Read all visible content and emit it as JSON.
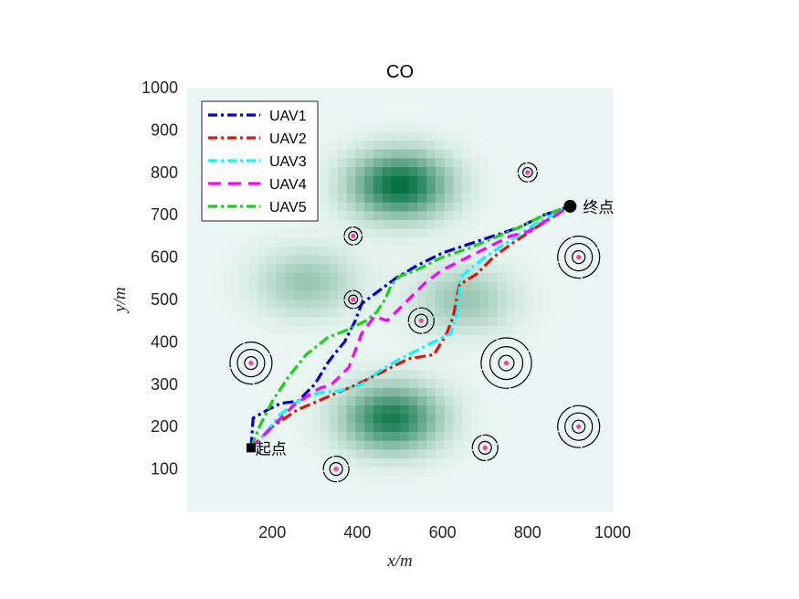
{
  "chart_data": {
    "type": "line",
    "title": "CO",
    "xlabel": "x/m",
    "ylabel": "y/m",
    "xlim": [
      0,
      1000
    ],
    "ylim": [
      0,
      1000
    ],
    "xticks": [
      200,
      400,
      600,
      800,
      1000
    ],
    "yticks": [
      100,
      200,
      300,
      400,
      500,
      600,
      700,
      800,
      900,
      1000
    ],
    "legend_position": "top-left",
    "background": {
      "type": "threat-density-heatmap",
      "colors": [
        "#eaf6f3",
        "#006f3c"
      ],
      "peaks": [
        {
          "x": 500,
          "y": 770,
          "intensity": 1.0
        },
        {
          "x": 480,
          "y": 220,
          "intensity": 0.9
        },
        {
          "x": 280,
          "y": 540,
          "intensity": 0.35
        },
        {
          "x": 650,
          "y": 500,
          "intensity": 0.35
        }
      ]
    },
    "series": [
      {
        "name": "UAV1",
        "color": "#0000cd",
        "style": "dashdot",
        "x": [
          150,
          155,
          190,
          220,
          260,
          300,
          330,
          345,
          370,
          395,
          410,
          450,
          490,
          540,
          600,
          660,
          720,
          780,
          840,
          900
        ],
        "y": [
          150,
          220,
          240,
          255,
          260,
          300,
          350,
          370,
          400,
          450,
          490,
          520,
          550,
          580,
          610,
          630,
          650,
          670,
          700,
          720
        ]
      },
      {
        "name": "UAV2",
        "color": "#e3120b",
        "style": "dashdot",
        "x": [
          150,
          200,
          260,
          330,
          400,
          460,
          520,
          580,
          610,
          625,
          640,
          680,
          720,
          760,
          820,
          900
        ],
        "y": [
          150,
          200,
          240,
          270,
          300,
          330,
          360,
          370,
          420,
          460,
          535,
          560,
          600,
          630,
          670,
          720
        ]
      },
      {
        "name": "UAV3",
        "color": "#00ffff",
        "style": "dashdot",
        "x": [
          150,
          180,
          220,
          260,
          310,
          360,
          410,
          450,
          500,
          560,
          620,
          625,
          635,
          640,
          640,
          650,
          700,
          760,
          820,
          900
        ],
        "y": [
          150,
          180,
          230,
          260,
          280,
          285,
          300,
          330,
          360,
          390,
          420,
          440,
          470,
          520,
          550,
          560,
          600,
          640,
          680,
          720
        ]
      },
      {
        "name": "UAV4",
        "color": "#ff00ff",
        "style": "dashed",
        "x": [
          150,
          210,
          250,
          280,
          310,
          340,
          360,
          380,
          395,
          410,
          440,
          470,
          500,
          530,
          560,
          600,
          640,
          680,
          720,
          760,
          800,
          850,
          900
        ],
        "y": [
          150,
          210,
          250,
          270,
          290,
          300,
          320,
          340,
          380,
          420,
          460,
          450,
          480,
          510,
          540,
          570,
          590,
          610,
          630,
          650,
          660,
          690,
          720
        ]
      },
      {
        "name": "UAV5",
        "color": "#18d21a",
        "style": "dashdot",
        "x": [
          150,
          170,
          200,
          240,
          280,
          330,
          380,
          420,
          445,
          465,
          480,
          500,
          540,
          600,
          660,
          720,
          780,
          840,
          900
        ],
        "y": [
          150,
          200,
          260,
          320,
          370,
          410,
          430,
          450,
          470,
          500,
          535,
          555,
          570,
          600,
          620,
          645,
          670,
          700,
          720
        ]
      }
    ],
    "obstacles": [
      {
        "x": 150,
        "y": 350,
        "rings": 3,
        "scale": 1.0
      },
      {
        "x": 350,
        "y": 100,
        "rings": 2,
        "scale": 1.0
      },
      {
        "x": 390,
        "y": 650,
        "rings": 2,
        "scale": 0.7
      },
      {
        "x": 390,
        "y": 500,
        "rings": 2,
        "scale": 0.7
      },
      {
        "x": 550,
        "y": 450,
        "rings": 2,
        "scale": 1.0
      },
      {
        "x": 700,
        "y": 150,
        "rings": 2,
        "scale": 1.0
      },
      {
        "x": 750,
        "y": 350,
        "rings": 3,
        "scale": 1.2
      },
      {
        "x": 800,
        "y": 800,
        "rings": 2,
        "scale": 0.75
      },
      {
        "x": 920,
        "y": 600,
        "rings": 3,
        "scale": 1.0
      },
      {
        "x": 920,
        "y": 200,
        "rings": 3,
        "scale": 1.0
      }
    ],
    "start": {
      "label": "起点",
      "x": 150,
      "y": 150
    },
    "end": {
      "label": "终点",
      "x": 900,
      "y": 720
    }
  }
}
